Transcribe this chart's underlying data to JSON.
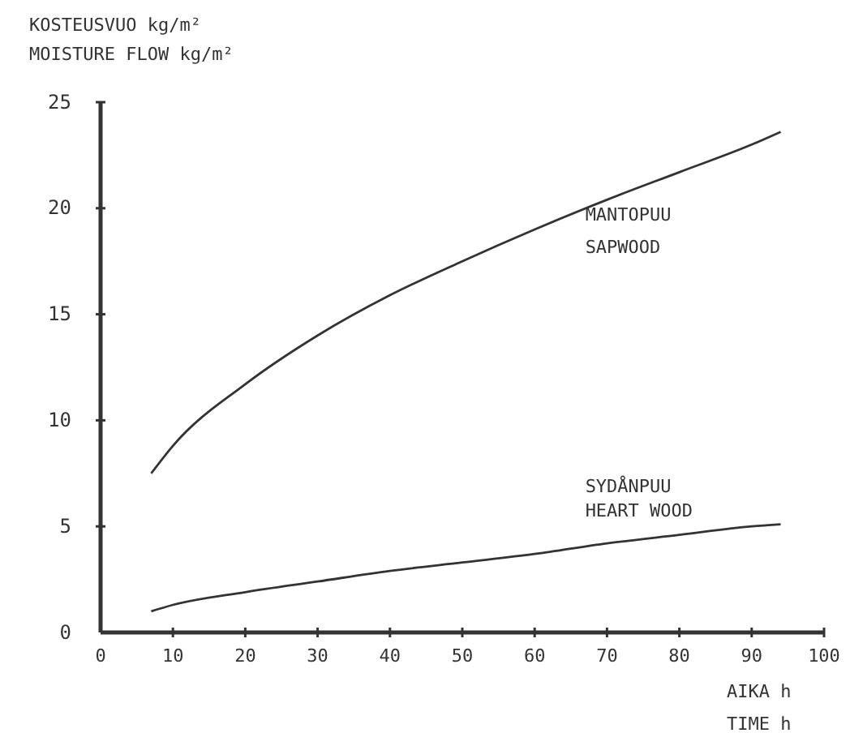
{
  "chart_data": {
    "type": "line",
    "ylabel": "KOSTEUSVUO kg/m²\nMOISTURE FLOW kg/m²",
    "xlabel": "AIKA h\nTIME h",
    "xlim": [
      0,
      100
    ],
    "xticks": [
      0,
      10,
      20,
      30,
      40,
      50,
      60,
      70,
      80,
      90,
      100
    ],
    "ylim": [
      0,
      25
    ],
    "yticks": [
      0,
      5,
      10,
      15,
      20,
      25
    ],
    "grid": false,
    "marker": "none",
    "line_style": "solid",
    "series": [
      {
        "name": "MANTOPUU\nSAPWOOD",
        "color": "#333333",
        "x": [
          7,
          10,
          20,
          30,
          40,
          50,
          60,
          70,
          80,
          90,
          94
        ],
        "values": [
          7.5,
          8.8,
          11.7,
          14.0,
          15.9,
          17.5,
          19.0,
          20.4,
          21.7,
          23.0,
          23.6
        ]
      },
      {
        "name": "SYDÅNPUU\nHEART WOOD",
        "color": "#333333",
        "x": [
          7,
          10,
          20,
          30,
          40,
          50,
          60,
          70,
          80,
          90,
          94
        ],
        "values": [
          1.0,
          1.3,
          1.9,
          2.4,
          2.9,
          3.3,
          3.7,
          4.2,
          4.6,
          5.0,
          5.1
        ]
      }
    ]
  }
}
